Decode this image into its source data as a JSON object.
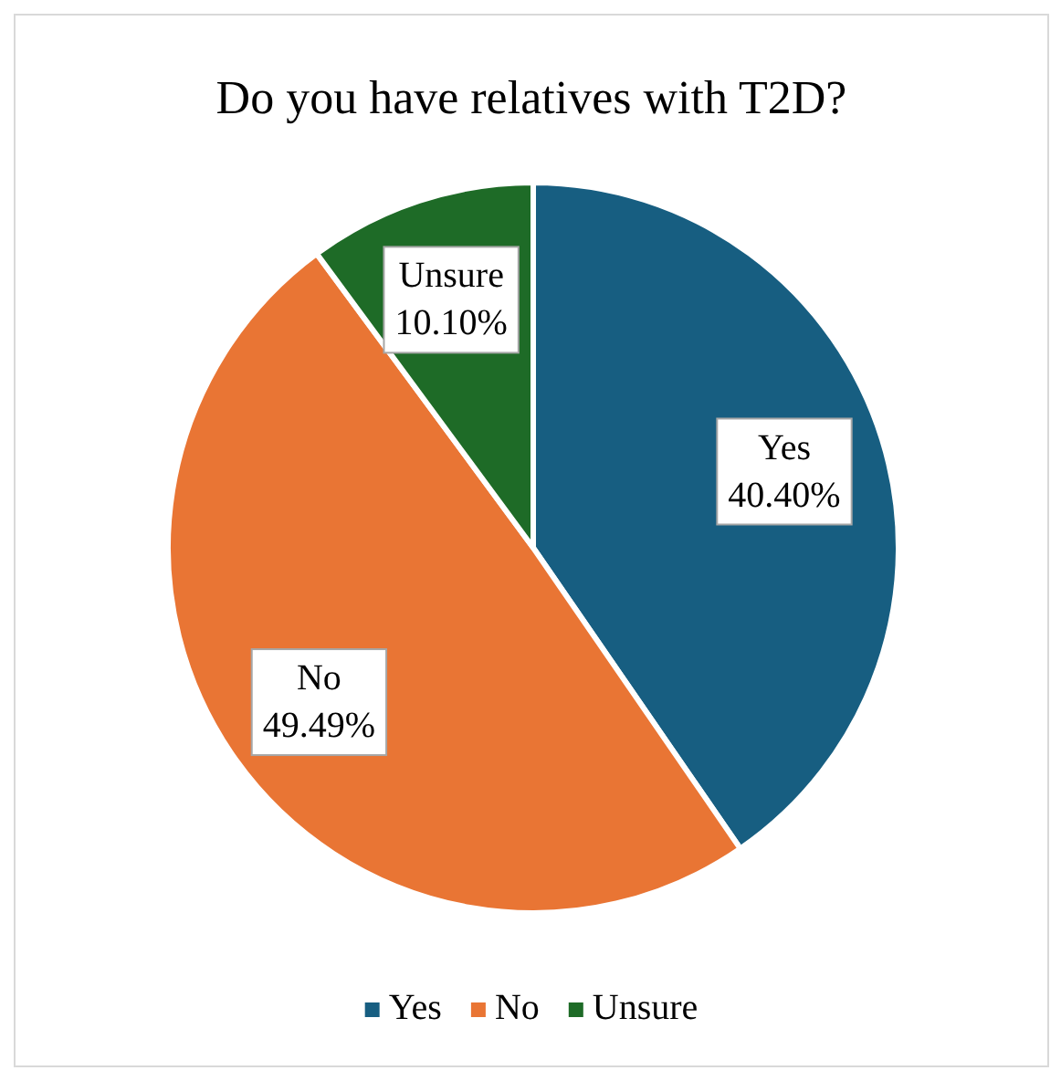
{
  "chart_data": {
    "type": "pie",
    "title": "Do you have relatives with T2D?",
    "categories": [
      "Yes",
      "No",
      "Unsure"
    ],
    "values": [
      40.4,
      49.49,
      10.1
    ],
    "colors": [
      "#175e81",
      "#e97534",
      "#1e6b27"
    ],
    "value_labels": [
      "40.40%",
      "49.49%",
      "10.10%"
    ],
    "legend": "bottom"
  }
}
